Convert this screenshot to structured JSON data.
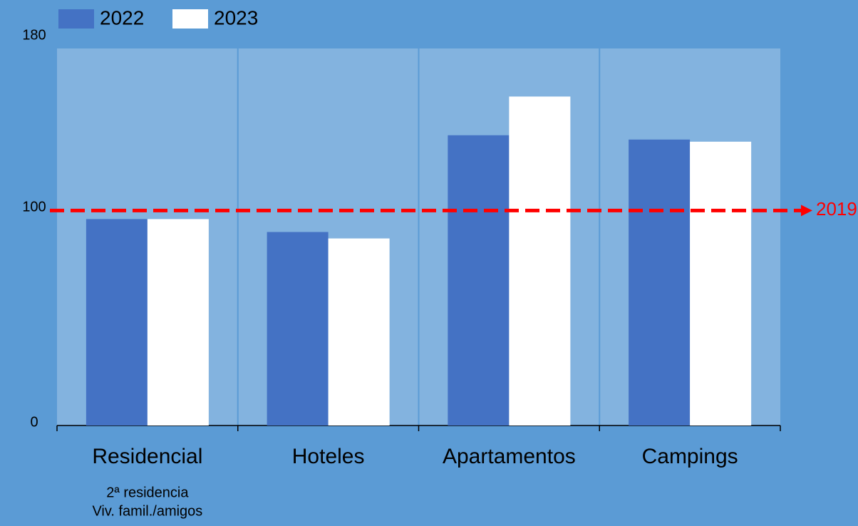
{
  "chart_data": {
    "type": "bar",
    "categories": [
      "Residencial",
      "Hoteles",
      "Apartamentos",
      "Campings"
    ],
    "category_notes": [
      [
        "2ª residencia",
        "Viv. famil./amigos"
      ],
      null,
      null,
      null
    ],
    "series": [
      {
        "name": "2022",
        "color": "#4472c4",
        "values": [
          96,
          90,
          135,
          133
        ]
      },
      {
        "name": "2023",
        "color": "#ffffff",
        "values": [
          96,
          87,
          153,
          132
        ]
      }
    ],
    "ylim": [
      0,
      180
    ],
    "yticks": [
      0,
      100,
      180
    ],
    "reference_line": {
      "value": 100,
      "label": "2019",
      "color": "#ff0000"
    },
    "legend": "top-left"
  }
}
